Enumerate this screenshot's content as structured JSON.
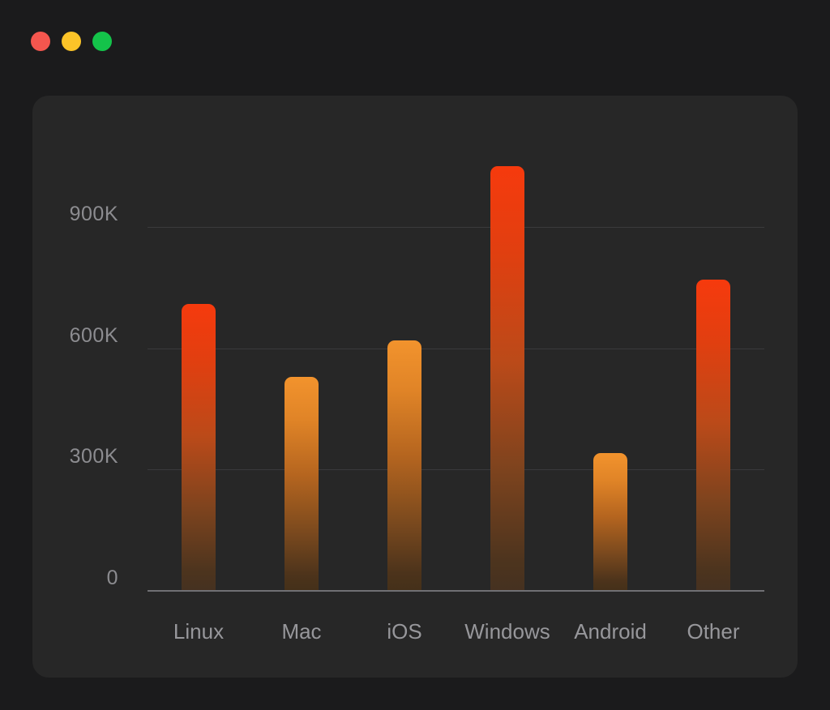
{
  "window": {
    "controls": [
      {
        "name": "close",
        "color": "#f4564e"
      },
      {
        "name": "minimize",
        "color": "#fcc428"
      },
      {
        "name": "maximize",
        "color": "#14c34a"
      }
    ]
  },
  "theme": {
    "page_bg": "#1b1b1c",
    "card_bg": "#272727",
    "grid_color": "#3a3a3c",
    "axis_color": "#707074",
    "tick_text_color": "#8c8c90",
    "category_text_color": "#97979b",
    "bar_gradients": {
      "red": [
        [
          "#f63a0d",
          0
        ],
        [
          "#e13f10",
          20
        ],
        [
          "#bb4a19",
          46
        ],
        [
          "#7c431e",
          72
        ],
        [
          "#4d341e",
          93
        ],
        [
          "#453120",
          100
        ]
      ],
      "orange": [
        [
          "#f2932d",
          0
        ],
        [
          "#e08427",
          20
        ],
        [
          "#b5651f",
          46
        ],
        [
          "#7c4a1e",
          72
        ],
        [
          "#4c331b",
          93
        ],
        [
          "#443019",
          100
        ]
      ]
    }
  },
  "chart_data": {
    "type": "bar",
    "title": "",
    "xlabel": "",
    "ylabel": "",
    "legend": false,
    "grid": true,
    "categories": [
      "Linux",
      "Mac",
      "iOS",
      "Windows",
      "Android",
      "Other"
    ],
    "values": [
      710000,
      530000,
      620000,
      1050000,
      340000,
      770000
    ],
    "bar_color_keys": [
      "red",
      "orange",
      "orange",
      "red",
      "orange",
      "red"
    ],
    "y_axis": {
      "ticks": [
        {
          "label": "900K",
          "value": 900000
        },
        {
          "label": "600K",
          "value": 600000
        },
        {
          "label": "300K",
          "value": 300000
        },
        {
          "label": "0",
          "value": 0
        }
      ],
      "gridline_values": [
        900000,
        600000,
        300000
      ],
      "ylim": [
        0,
        900000
      ]
    }
  }
}
